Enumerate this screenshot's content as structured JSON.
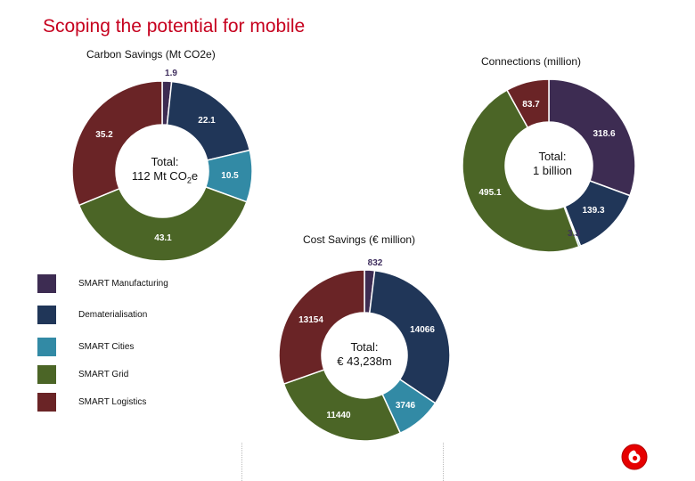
{
  "header": {
    "title": "Scoping the potential for mobile"
  },
  "colors": {
    "smart_manufacturing": "#3d2c52",
    "dematerialisation": "#203658",
    "smart_cities": "#328aa5",
    "smart_grid": "#4b6526",
    "smart_logistics": "#6a2426",
    "title_red": "#c6001e",
    "label_dark": "#3f2e5e"
  },
  "legend": [
    {
      "label": "SMART Manufacturing",
      "color": "#3d2c52"
    },
    {
      "label": "Dematerialisation",
      "color": "#203658"
    },
    {
      "label": "SMART Cities",
      "color": "#328aa5"
    },
    {
      "label": "SMART Grid",
      "color": "#4b6526"
    },
    {
      "label": "SMART Logistics",
      "color": "#6a2426"
    }
  ],
  "chart_data": [
    {
      "type": "pie",
      "title": "Carbon Savings (Mt CO2e)",
      "center_label": {
        "line1": "Total:",
        "line2_prefix": "112 Mt CO",
        "line2_sub": "2",
        "line2_suffix": "e"
      },
      "categories": [
        "SMART Manufacturing",
        "Dematerialisation",
        "SMART Cities",
        "SMART Grid",
        "SMART Logistics"
      ],
      "values": [
        1.9,
        22.1,
        10.5,
        43.1,
        35.2
      ],
      "labels": [
        "1.9",
        "22.1",
        "10.5",
        "43.1",
        "35.2"
      ]
    },
    {
      "type": "pie",
      "title": "Connections (million)",
      "center_label": {
        "line1": "Total:",
        "line2": "1 billion"
      },
      "categories": [
        "SMART Manufacturing",
        "Dematerialisation",
        "SMART Cities",
        "SMART Grid",
        "SMART Logistics"
      ],
      "values": [
        318.6,
        139.3,
        3.3,
        495.1,
        83.7
      ],
      "labels": [
        "318.6",
        "139.3",
        "3.3",
        "495.1",
        "83.7"
      ]
    },
    {
      "type": "pie",
      "title": "Cost Savings (€ million)",
      "center_label": {
        "line1": "Total:",
        "line2": "€ 43,238m"
      },
      "categories": [
        "SMART Manufacturing",
        "Dematerialisation",
        "SMART Cities",
        "SMART Grid",
        "SMART Logistics"
      ],
      "values": [
        832,
        14066,
        3746,
        11440,
        13154
      ],
      "labels": [
        "832",
        "14066",
        "3746",
        "11440",
        "13154"
      ]
    }
  ]
}
